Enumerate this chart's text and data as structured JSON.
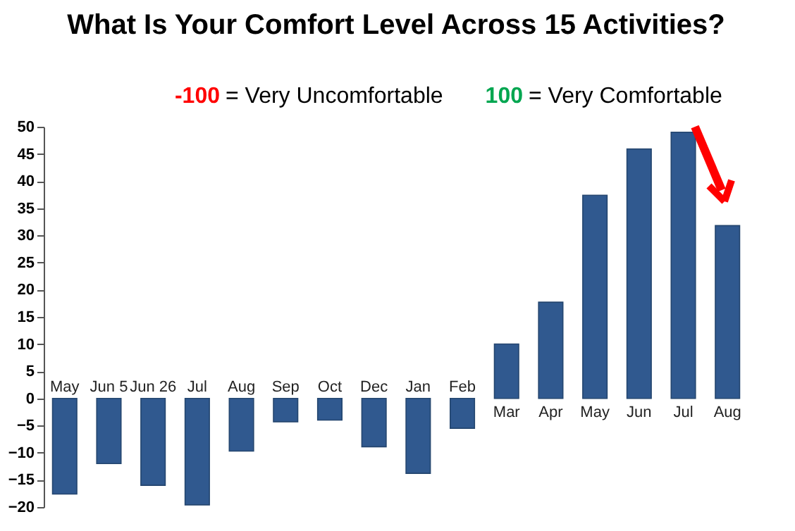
{
  "chart_data": {
    "type": "bar",
    "title": "What Is Your Comfort Level Across 15 Activities?",
    "annotations": [
      "-100 = Very Uncomfortable",
      "100 = Very Comfortable"
    ],
    "categories": [
      "May",
      "Jun 5",
      "Jun 26",
      "Jul",
      "Aug",
      "Sep",
      "Oct",
      "Dec",
      "Jan",
      "Feb",
      "Mar",
      "Apr",
      "May",
      "Jun",
      "Jul",
      "Aug"
    ],
    "values": [
      -17.6,
      -12,
      -16,
      -19.6,
      -9.7,
      -4.3,
      -4,
      -8.9,
      -13.8,
      -5.5,
      10,
      17.7,
      37.4,
      45.9,
      49,
      31.8
    ],
    "color": "#30598f",
    "ylim": [
      -20,
      50
    ],
    "yticks": [
      -20,
      -15,
      -10,
      -5,
      0,
      5,
      10,
      15,
      20,
      25,
      30,
      35,
      40,
      45,
      50
    ],
    "grid": false
  }
}
